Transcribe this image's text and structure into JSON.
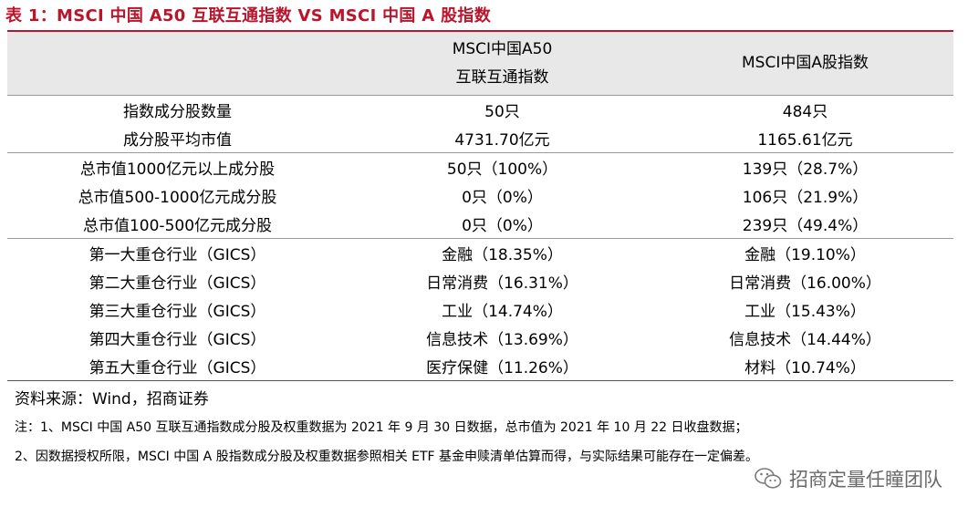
{
  "title": "表 1：MSCI 中国 A50 互联互通指数 VS MSCI 中国 A 股指数",
  "table": {
    "headers": [
      "",
      "MSCI中国A50\n互联互通指数",
      "MSCI中国A股指数"
    ],
    "groups": [
      {
        "rows": [
          [
            "指数成分股数量",
            "50只",
            "484只"
          ],
          [
            "成分股平均市值",
            "4731.70亿元",
            "1165.61亿元"
          ]
        ]
      },
      {
        "rows": [
          [
            "总市值1000亿元以上成分股",
            "50只（100%）",
            "139只（28.7%）"
          ],
          [
            "总市值500-1000亿元成分股",
            "0只（0%）",
            "106只（21.9%）"
          ],
          [
            "总市值100-500亿元成分股",
            "0只（0%）",
            "239只（49.4%）"
          ]
        ]
      },
      {
        "rows": [
          [
            "第一大重仓行业（GICS）",
            "金融（18.35%）",
            "金融（19.10%）"
          ],
          [
            "第二大重仓行业（GICS）",
            "日常消费（16.31%）",
            "日常消费（16.00%）"
          ],
          [
            "第三大重仓行业（GICS）",
            "工业（14.74%）",
            "工业（15.43%）"
          ],
          [
            "第四大重仓行业（GICS）",
            "信息技术（13.69%）",
            "信息技术（14.44%）"
          ],
          [
            "第五大重仓行业（GICS）",
            "医疗保健（11.26%）",
            "材料（10.74%）"
          ]
        ]
      }
    ]
  },
  "source": "资料来源：Wind，招商证券",
  "notes": [
    "注：1、MSCI 中国 A50 互联互通指数成分股及权重数据为 2021 年 9 月 30 日数据，总市值为 2021 年 10 月 22 日收盘数据；",
    "2、因数据授权所限，MSCI 中国 A 股指数成分股及权重数据参照相关 ETF 基金申赎清单估算而得，与实际结果可能存在一定偏差。"
  ],
  "watermark": "招商定量任瞳团队",
  "colors": {
    "accent": "#b8162d",
    "header_bg": "#e8e8e8",
    "watermark": "#6a6a6a"
  }
}
